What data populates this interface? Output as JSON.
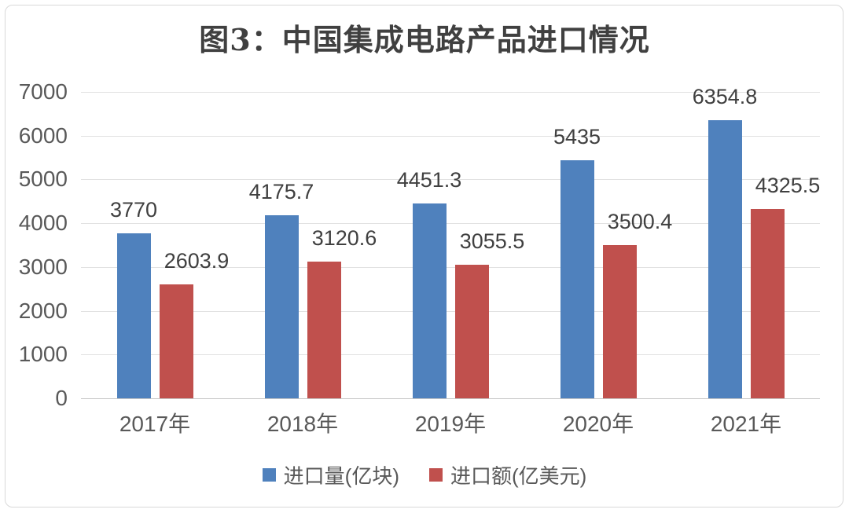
{
  "frame": {
    "background": "#ffffff",
    "border_color": "#d9d9d9"
  },
  "chart_data": {
    "type": "bar",
    "title": "图3：中国集成电路产品进口情况",
    "categories": [
      "2017年",
      "2018年",
      "2019年",
      "2020年",
      "2021年"
    ],
    "series": [
      {
        "key": "import-volume",
        "name": "进口量(亿块)",
        "color": "#4F81BD",
        "values": [
          3770,
          4175.7,
          4451.3,
          5435,
          6354.8
        ],
        "data_labels": [
          "3770",
          "4175.7",
          "4451.3",
          "5435",
          "6354.8"
        ],
        "label_offset_x": 0
      },
      {
        "key": "import-value",
        "name": "进口额(亿美元)",
        "color": "#C0504D",
        "values": [
          2603.9,
          3120.6,
          3055.5,
          3500.4,
          4325.5
        ],
        "data_labels": [
          "2603.9",
          "3120.6",
          "3055.5",
          "3500.4",
          "4325.5"
        ],
        "label_offset_x": 26
      }
    ],
    "xlabel": "",
    "ylabel": "",
    "ylim": [
      0,
      7000
    ],
    "yticks": [
      0,
      1000,
      2000,
      3000,
      4000,
      5000,
      6000,
      7000
    ],
    "grid": true,
    "gridline_color": "#e2e2e2",
    "axis_text_color": "#595959",
    "label_text_color": "#404040",
    "legend_position": "bottom"
  }
}
